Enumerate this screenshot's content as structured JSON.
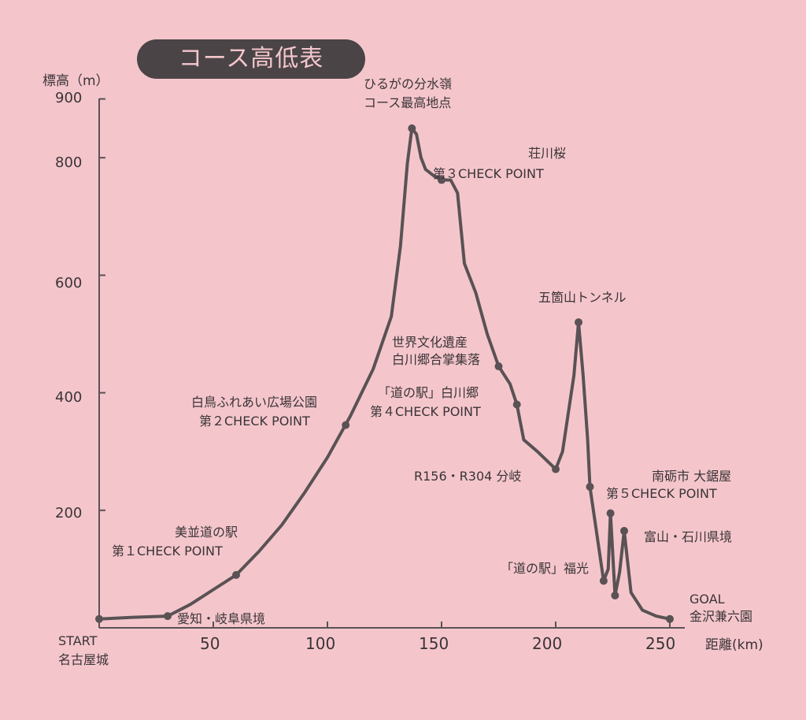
{
  "chart_data": {
    "type": "line",
    "title": "コース高低表",
    "ylabel": "標高（m）",
    "xlabel": "距離(km)",
    "ylim": [
      0,
      900
    ],
    "xlim": [
      0,
      260
    ],
    "grid": false,
    "y_ticks": [
      "200",
      "400",
      "600",
      "800",
      "900"
    ],
    "x_ticks": [
      "50",
      "100",
      "150",
      "200",
      "250"
    ],
    "x_origin_label": "START",
    "x_origin_sublabel": "名古屋城",
    "series": [
      {
        "values": [
          {
            "x": 0,
            "y": 15
          },
          {
            "x": 15,
            "y": 18
          },
          {
            "x": 30,
            "y": 20
          },
          {
            "x": 40,
            "y": 40
          },
          {
            "x": 50,
            "y": 65
          },
          {
            "x": 60,
            "y": 90
          },
          {
            "x": 70,
            "y": 130
          },
          {
            "x": 80,
            "y": 175
          },
          {
            "x": 90,
            "y": 230
          },
          {
            "x": 100,
            "y": 290
          },
          {
            "x": 110,
            "y": 360
          },
          {
            "x": 120,
            "y": 440
          },
          {
            "x": 128,
            "y": 530
          },
          {
            "x": 132,
            "y": 650
          },
          {
            "x": 135,
            "y": 790
          },
          {
            "x": 137,
            "y": 850
          },
          {
            "x": 139,
            "y": 840
          },
          {
            "x": 141,
            "y": 800
          },
          {
            "x": 143,
            "y": 780
          },
          {
            "x": 147,
            "y": 768
          },
          {
            "x": 150,
            "y": 762
          },
          {
            "x": 154,
            "y": 762
          },
          {
            "x": 157,
            "y": 740
          },
          {
            "x": 160,
            "y": 620
          },
          {
            "x": 165,
            "y": 570
          },
          {
            "x": 170,
            "y": 500
          },
          {
            "x": 175,
            "y": 445
          },
          {
            "x": 180,
            "y": 415
          },
          {
            "x": 183,
            "y": 380
          },
          {
            "x": 186,
            "y": 320
          },
          {
            "x": 192,
            "y": 300
          },
          {
            "x": 200,
            "y": 270
          },
          {
            "x": 203,
            "y": 300
          },
          {
            "x": 208,
            "y": 430
          },
          {
            "x": 210,
            "y": 520
          },
          {
            "x": 212,
            "y": 430
          },
          {
            "x": 214,
            "y": 320
          },
          {
            "x": 215,
            "y": 240
          },
          {
            "x": 218,
            "y": 160
          },
          {
            "x": 221,
            "y": 80
          },
          {
            "x": 223,
            "y": 100
          },
          {
            "x": 224,
            "y": 195
          },
          {
            "x": 226,
            "y": 55
          },
          {
            "x": 228,
            "y": 95
          },
          {
            "x": 230,
            "y": 165
          },
          {
            "x": 233,
            "y": 60
          },
          {
            "x": 238,
            "y": 30
          },
          {
            "x": 244,
            "y": 20
          },
          {
            "x": 250,
            "y": 15
          }
        ]
      }
    ],
    "markers": [
      {
        "x": 0,
        "y": 15
      },
      {
        "x": 30,
        "y": 20
      },
      {
        "x": 60,
        "y": 90
      },
      {
        "x": 108,
        "y": 345
      },
      {
        "x": 137,
        "y": 850
      },
      {
        "x": 150,
        "y": 762
      },
      {
        "x": 175,
        "y": 445
      },
      {
        "x": 183,
        "y": 380
      },
      {
        "x": 200,
        "y": 270
      },
      {
        "x": 210,
        "y": 520
      },
      {
        "x": 215,
        "y": 240
      },
      {
        "x": 221,
        "y": 80
      },
      {
        "x": 224,
        "y": 195
      },
      {
        "x": 226,
        "y": 55
      },
      {
        "x": 230,
        "y": 165
      },
      {
        "x": 250,
        "y": 15
      }
    ],
    "annotations": [
      {
        "lines": [
          "ひるがの分水嶺",
          "コース最高地点"
        ]
      },
      {
        "lines": [
          "荘川桜"
        ]
      },
      {
        "lines": [
          "第３CHECK POINT"
        ]
      },
      {
        "lines": [
          "五箇山トンネル"
        ]
      },
      {
        "lines": [
          "世界文化遺産",
          "白川郷合掌集落"
        ]
      },
      {
        "lines": [
          "「道の駅」白川郷",
          "第４CHECK POINT"
        ]
      },
      {
        "lines": [
          "白鳥ふれあい広場公園",
          "第２CHECK POINT"
        ]
      },
      {
        "lines": [
          "R156・R304 分岐"
        ]
      },
      {
        "lines": [
          "南砺市 大鋸屋",
          "第５CHECK POINT"
        ]
      },
      {
        "lines": [
          "美並道の駅",
          "第１CHECK POINT"
        ]
      },
      {
        "lines": [
          "「道の駅」福光"
        ]
      },
      {
        "lines": [
          "富山・石川県境"
        ]
      },
      {
        "lines": [
          "愛知・岐阜県境"
        ]
      },
      {
        "lines": [
          "GOAL",
          "金沢兼六園"
        ]
      }
    ]
  },
  "colors": {
    "background": "#f4c6cc",
    "line": "#5a5254",
    "text": "#3a3436",
    "title_bg": "#4a4446",
    "title_text": "#f4c6cc"
  }
}
